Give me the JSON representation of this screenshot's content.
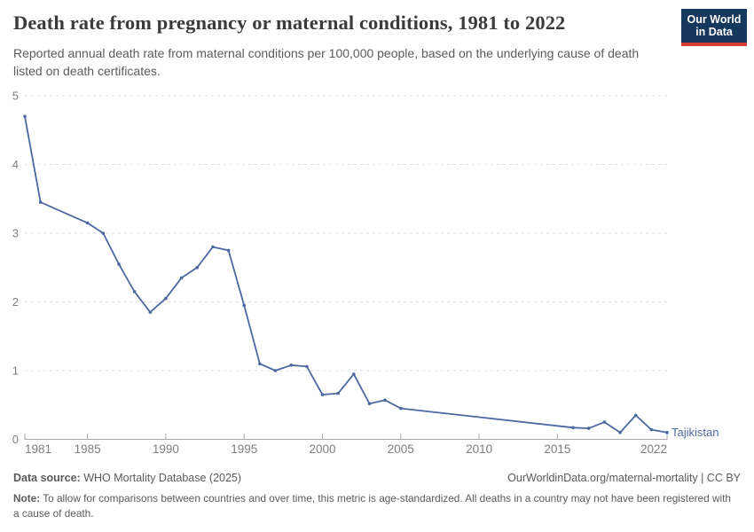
{
  "header": {
    "title": "Death rate from pregnancy or maternal conditions, 1981 to 2022",
    "subtitle": "Reported annual death rate from maternal conditions per 100,000 people, based on the underlying cause of death listed on death certificates.",
    "logo": {
      "line1": "Our World",
      "line2": "in Data",
      "bg_color": "#16385c",
      "stripe_color": "#d73a30"
    }
  },
  "chart_data": {
    "type": "line",
    "title": "Death rate from pregnancy or maternal conditions, 1981 to 2022",
    "xlabel": "",
    "ylabel": "",
    "xlim": [
      1981,
      2022
    ],
    "ylim": [
      0,
      5
    ],
    "grid": "horizontal-dashed",
    "legend_position": "end-of-line-label",
    "x_ticks": [
      1981,
      1985,
      1990,
      1995,
      2000,
      2005,
      2010,
      2015,
      2022
    ],
    "y_ticks": [
      0,
      1,
      2,
      3,
      4,
      5
    ],
    "line_color": "#4b69a1",
    "end_label": "Tajikistan",
    "series": [
      {
        "name": "Tajikistan",
        "points": [
          [
            1981,
            4.7
          ],
          [
            1982,
            3.45
          ],
          [
            1985,
            3.15
          ],
          [
            1986,
            3.0
          ],
          [
            1987,
            2.55
          ],
          [
            1988,
            2.15
          ],
          [
            1989,
            1.85
          ],
          [
            1990,
            2.05
          ],
          [
            1991,
            2.35
          ],
          [
            1992,
            2.5
          ],
          [
            1993,
            2.8
          ],
          [
            1994,
            2.75
          ],
          [
            1995,
            1.95
          ],
          [
            1996,
            1.1
          ],
          [
            1997,
            1.0
          ],
          [
            1998,
            1.08
          ],
          [
            1999,
            1.06
          ],
          [
            2000,
            0.65
          ],
          [
            2001,
            0.67
          ],
          [
            2002,
            0.95
          ],
          [
            2003,
            0.52
          ],
          [
            2004,
            0.57
          ],
          [
            2005,
            0.45
          ],
          [
            2016,
            0.17
          ],
          [
            2017,
            0.16
          ],
          [
            2018,
            0.25
          ],
          [
            2019,
            0.1
          ],
          [
            2020,
            0.35
          ],
          [
            2021,
            0.14
          ],
          [
            2022,
            0.1
          ]
        ]
      }
    ]
  },
  "footer": {
    "data_source_label": "Data source:",
    "data_source_value": " WHO Mortality Database (2025)",
    "attribution": "OurWorldinData.org/maternal-mortality | CC BY",
    "note_label": "Note:",
    "note_value": " To allow for comparisons between countries and over time, this metric is age-standardized. All deaths in a country may not have been registered with a cause of death."
  }
}
